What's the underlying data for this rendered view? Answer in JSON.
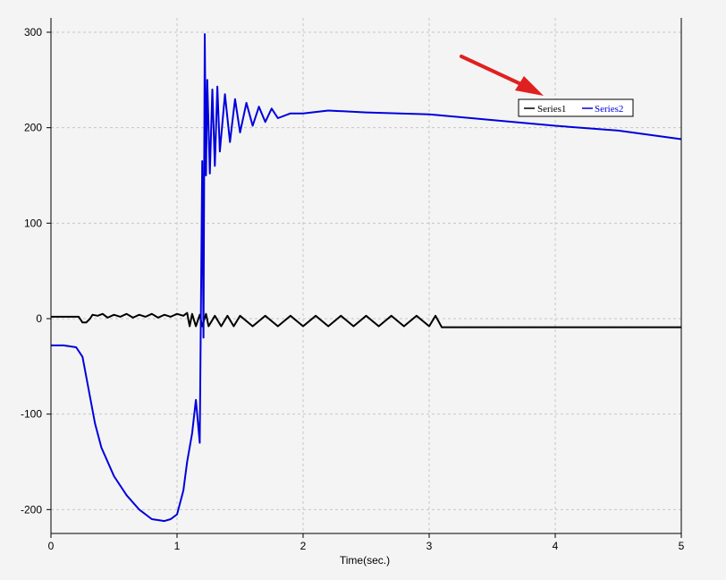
{
  "chart_data": {
    "type": "line",
    "title": "",
    "xlabel": "Time(sec.)",
    "ylabel": "",
    "xlim": [
      0,
      5
    ],
    "ylim": [
      -225,
      315
    ],
    "xticks": [
      0,
      1,
      2,
      3,
      4,
      5
    ],
    "yticks": [
      -200,
      -100,
      0,
      100,
      200,
      300
    ],
    "xtick_labels": [
      "0",
      "1",
      "2",
      "3",
      "4",
      "5"
    ],
    "ytick_labels": [
      "-200",
      "-100",
      "0",
      "100",
      "200",
      "300"
    ],
    "grid": true,
    "legend_position": "top-right",
    "series": [
      {
        "name": "Series1",
        "color": "#000000",
        "x": [
          0,
          0.22,
          0.25,
          0.28,
          0.31,
          0.33,
          0.37,
          0.41,
          0.45,
          0.5,
          0.55,
          0.6,
          0.65,
          0.7,
          0.75,
          0.8,
          0.85,
          0.9,
          0.95,
          1.0,
          1.05,
          1.08,
          1.1,
          1.12,
          1.15,
          1.18,
          1.2,
          1.23,
          1.25,
          1.3,
          1.35,
          1.4,
          1.45,
          1.5,
          1.6,
          1.7,
          1.8,
          1.9,
          2.0,
          2.1,
          2.2,
          2.3,
          2.4,
          2.5,
          2.6,
          2.7,
          2.8,
          2.9,
          3.0,
          3.05,
          3.1,
          3.5,
          4.0,
          4.5,
          5.0
        ],
        "y": [
          2,
          2,
          -4,
          -4,
          0,
          4,
          3,
          5,
          1,
          4,
          2,
          5,
          1,
          4,
          2,
          5,
          1,
          4,
          2,
          5,
          3,
          6,
          -8,
          5,
          -8,
          4,
          -8,
          5,
          -8,
          3,
          -8,
          3,
          -8,
          3,
          -8,
          3,
          -8,
          3,
          -8,
          3,
          -8,
          3,
          -8,
          3,
          -8,
          3,
          -8,
          3,
          -8,
          3,
          -9,
          -9,
          -9,
          -9,
          -9
        ]
      },
      {
        "name": "Series2",
        "color": "#0000dd",
        "x": [
          0,
          0.1,
          0.2,
          0.25,
          0.3,
          0.35,
          0.4,
          0.5,
          0.6,
          0.7,
          0.8,
          0.9,
          0.95,
          1.0,
          1.05,
          1.08,
          1.12,
          1.15,
          1.18,
          1.2,
          1.21,
          1.22,
          1.23,
          1.24,
          1.26,
          1.28,
          1.3,
          1.32,
          1.34,
          1.38,
          1.42,
          1.46,
          1.5,
          1.55,
          1.6,
          1.65,
          1.7,
          1.75,
          1.8,
          1.9,
          2.0,
          2.2,
          2.5,
          3.0,
          3.5,
          4.0,
          4.5,
          5.0
        ],
        "y": [
          -28,
          -28,
          -30,
          -40,
          -75,
          -110,
          -135,
          -165,
          -185,
          -200,
          -210,
          -212,
          -210,
          -205,
          -180,
          -150,
          -120,
          -85,
          -130,
          165,
          -20,
          298,
          150,
          250,
          152,
          240,
          160,
          243,
          175,
          235,
          185,
          230,
          195,
          226,
          202,
          222,
          206,
          220,
          210,
          215,
          215,
          218,
          216,
          214,
          208,
          202,
          197,
          188
        ]
      }
    ]
  }
}
